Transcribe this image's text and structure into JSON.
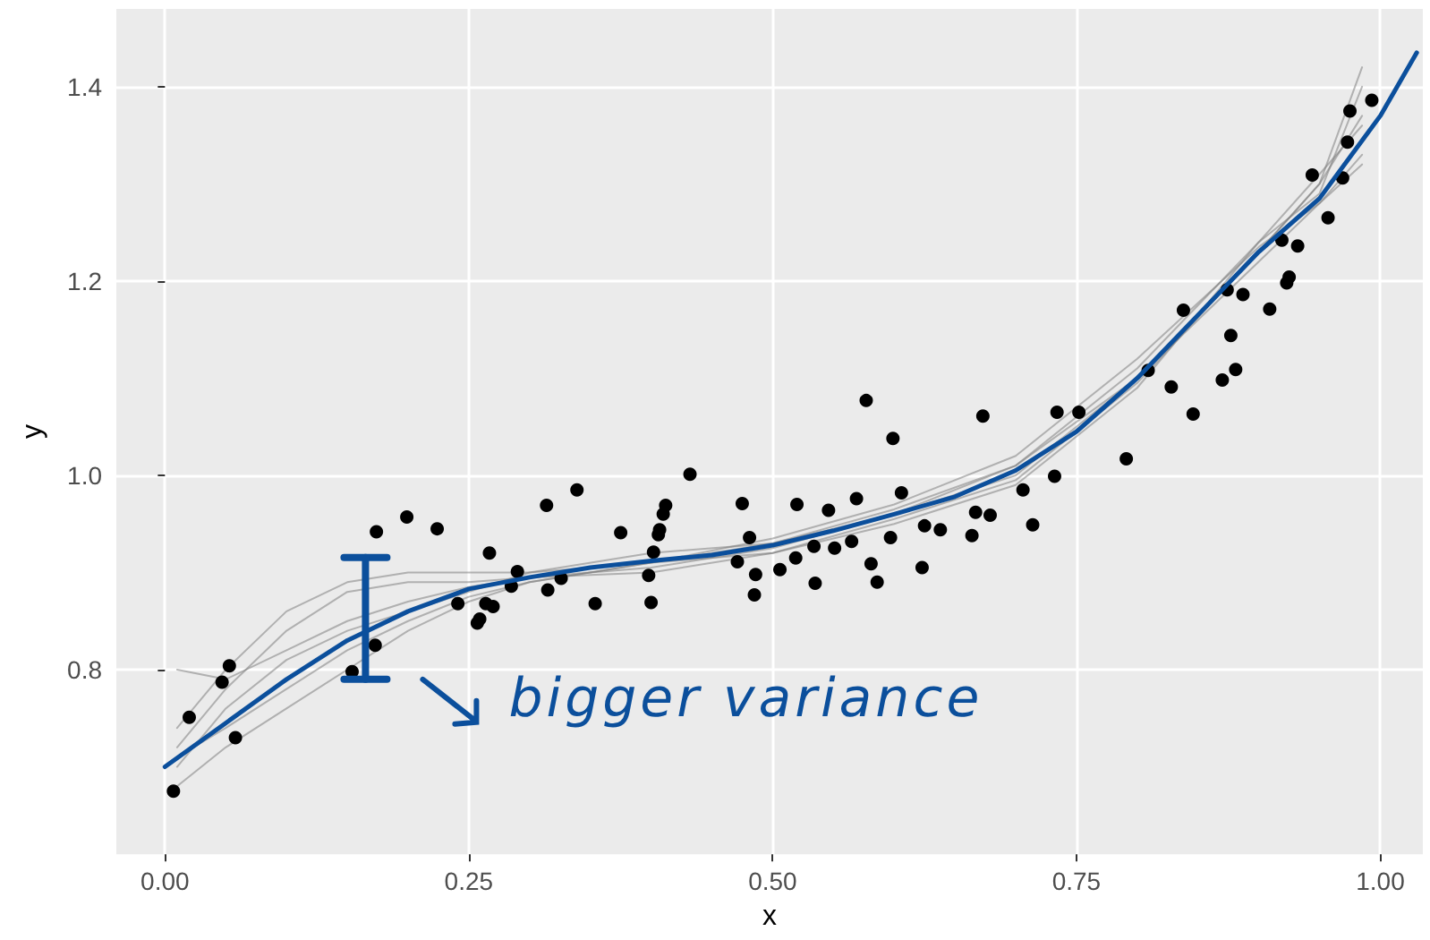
{
  "chart_data": {
    "type": "scatter",
    "xlabel": "x",
    "ylabel": "y",
    "xlim": [
      -0.04,
      1.035
    ],
    "ylim": [
      0.61,
      1.48
    ],
    "xticks": [
      {
        "value": 0,
        "label": "0.00"
      },
      {
        "value": 0.25,
        "label": "0.25"
      },
      {
        "value": 0.5,
        "label": "0.50"
      },
      {
        "value": 0.75,
        "label": "0.75"
      },
      {
        "value": 1,
        "label": "1.00"
      }
    ],
    "yticks": [
      0.8,
      {
        "value": 1,
        "label": "1.0"
      },
      1.2,
      1.4
    ],
    "grid": true,
    "marker": "circle",
    "annotations": [
      {
        "text": "bigger variance",
        "x": 0.165,
        "y": 0.79
      }
    ],
    "series": [
      {
        "type": "line",
        "color": "#808080",
        "marker": "none",
        "x": [
          0.01,
          0.05,
          0.1,
          0.15,
          0.2,
          0.25,
          0.3,
          0.4,
          0.5,
          0.6,
          0.7,
          0.8,
          0.9,
          0.95,
          0.985
        ],
        "values": [
          0.74,
          0.8,
          0.86,
          0.89,
          0.9,
          0.9,
          0.9,
          0.91,
          0.93,
          0.965,
          1.01,
          1.1,
          1.23,
          1.3,
          1.42
        ]
      },
      {
        "type": "line",
        "color": "#808080",
        "marker": "none",
        "x": [
          0.01,
          0.05,
          0.1,
          0.15,
          0.2,
          0.25,
          0.3,
          0.4,
          0.5,
          0.6,
          0.7,
          0.8,
          0.9,
          0.95,
          0.985
        ],
        "values": [
          0.68,
          0.72,
          0.76,
          0.8,
          0.84,
          0.87,
          0.89,
          0.91,
          0.92,
          0.95,
          0.99,
          1.09,
          1.24,
          1.31,
          1.36
        ]
      },
      {
        "type": "line",
        "color": "#808080",
        "marker": "none",
        "x": [
          0.01,
          0.05,
          0.1,
          0.15,
          0.2,
          0.25,
          0.3,
          0.4,
          0.5,
          0.6,
          0.7,
          0.8,
          0.9,
          0.95,
          0.985
        ],
        "values": [
          0.8,
          0.79,
          0.82,
          0.85,
          0.87,
          0.885,
          0.895,
          0.905,
          0.925,
          0.96,
          1.0,
          1.1,
          1.22,
          1.28,
          1.33
        ]
      },
      {
        "type": "line",
        "color": "#808080",
        "marker": "none",
        "x": [
          0.01,
          0.05,
          0.1,
          0.15,
          0.2,
          0.25,
          0.3,
          0.4,
          0.5,
          0.6,
          0.7,
          0.8,
          0.9,
          0.95,
          0.985
        ],
        "values": [
          0.7,
          0.76,
          0.81,
          0.84,
          0.86,
          0.88,
          0.9,
          0.92,
          0.93,
          0.96,
          1.01,
          1.11,
          1.24,
          1.29,
          1.4
        ]
      },
      {
        "type": "line",
        "color": "#808080",
        "marker": "none",
        "x": [
          0.01,
          0.05,
          0.1,
          0.15,
          0.2,
          0.25,
          0.3,
          0.4,
          0.5,
          0.6,
          0.7,
          0.8,
          0.9,
          0.95,
          0.985
        ],
        "values": [
          0.72,
          0.78,
          0.84,
          0.88,
          0.89,
          0.89,
          0.895,
          0.9,
          0.92,
          0.955,
          0.995,
          1.095,
          1.23,
          1.3,
          1.37
        ]
      },
      {
        "type": "line",
        "color": "#808080",
        "marker": "none",
        "x": [
          0.01,
          0.05,
          0.1,
          0.15,
          0.2,
          0.25,
          0.3,
          0.4,
          0.5,
          0.6,
          0.7,
          0.8,
          0.9,
          0.95,
          0.985
        ],
        "values": [
          0.71,
          0.74,
          0.78,
          0.82,
          0.85,
          0.875,
          0.89,
          0.91,
          0.935,
          0.97,
          1.02,
          1.12,
          1.235,
          1.28,
          1.32
        ]
      },
      {
        "color": "#000000",
        "x": [
          0.007,
          0.02,
          0.047,
          0.053,
          0.058,
          0.154,
          0.173,
          0.174,
          0.199,
          0.224,
          0.241,
          0.257,
          0.259,
          0.264,
          0.27,
          0.267,
          0.29,
          0.285,
          0.314,
          0.315,
          0.339,
          0.326,
          0.354,
          0.375,
          0.4,
          0.398,
          0.402,
          0.406,
          0.407,
          0.41,
          0.412,
          0.432,
          0.471,
          0.475,
          0.481,
          0.485,
          0.486,
          0.506,
          0.519,
          0.52,
          0.535,
          0.534,
          0.546,
          0.551,
          0.565,
          0.569,
          0.577,
          0.581,
          0.586,
          0.599,
          0.597,
          0.606,
          0.623,
          0.625,
          0.638,
          0.664,
          0.667,
          0.673,
          0.679,
          0.706,
          0.714,
          0.732,
          0.734,
          0.752,
          0.791,
          0.809,
          0.828,
          0.838,
          0.846,
          0.87,
          0.881,
          0.874,
          0.877,
          0.887,
          0.909,
          0.923,
          0.925,
          0.919,
          0.932,
          0.957,
          0.944,
          0.969,
          0.973,
          0.975,
          0.993
        ],
        "values": [
          0.675,
          0.751,
          0.787,
          0.804,
          0.73,
          0.798,
          0.825,
          0.942,
          0.957,
          0.945,
          0.868,
          0.848,
          0.852,
          0.868,
          0.865,
          0.92,
          0.901,
          0.886,
          0.969,
          0.882,
          0.985,
          0.894,
          0.868,
          0.941,
          0.869,
          0.897,
          0.921,
          0.939,
          0.944,
          0.96,
          0.969,
          1.001,
          0.911,
          0.971,
          0.936,
          0.877,
          0.898,
          0.903,
          0.915,
          0.97,
          0.889,
          0.927,
          0.964,
          0.925,
          0.932,
          0.976,
          1.077,
          0.909,
          0.89,
          1.038,
          0.936,
          0.982,
          0.905,
          0.948,
          0.944,
          0.938,
          0.962,
          1.061,
          0.959,
          0.985,
          0.949,
          0.999,
          1.065,
          1.065,
          1.017,
          1.108,
          1.091,
          1.17,
          1.063,
          1.098,
          1.109,
          1.191,
          1.144,
          1.186,
          1.171,
          1.198,
          1.204,
          1.242,
          1.236,
          1.265,
          1.309,
          1.306,
          1.343,
          1.375,
          1.386
        ]
      },
      {
        "type": "line",
        "color": "#0b4f9c",
        "marker": "none",
        "x": [
          0,
          0.05,
          0.1,
          0.15,
          0.2,
          0.25,
          0.3,
          0.35,
          0.4,
          0.45,
          0.5,
          0.55,
          0.6,
          0.65,
          0.7,
          0.75,
          0.8,
          0.85,
          0.9,
          0.95,
          1.0,
          1.03
        ],
        "values": [
          0.7,
          0.745,
          0.79,
          0.83,
          0.86,
          0.883,
          0.895,
          0.905,
          0.912,
          0.918,
          0.928,
          0.943,
          0.96,
          0.978,
          1.005,
          1.045,
          1.1,
          1.165,
          1.23,
          1.285,
          1.37,
          1.435
        ]
      }
    ]
  }
}
